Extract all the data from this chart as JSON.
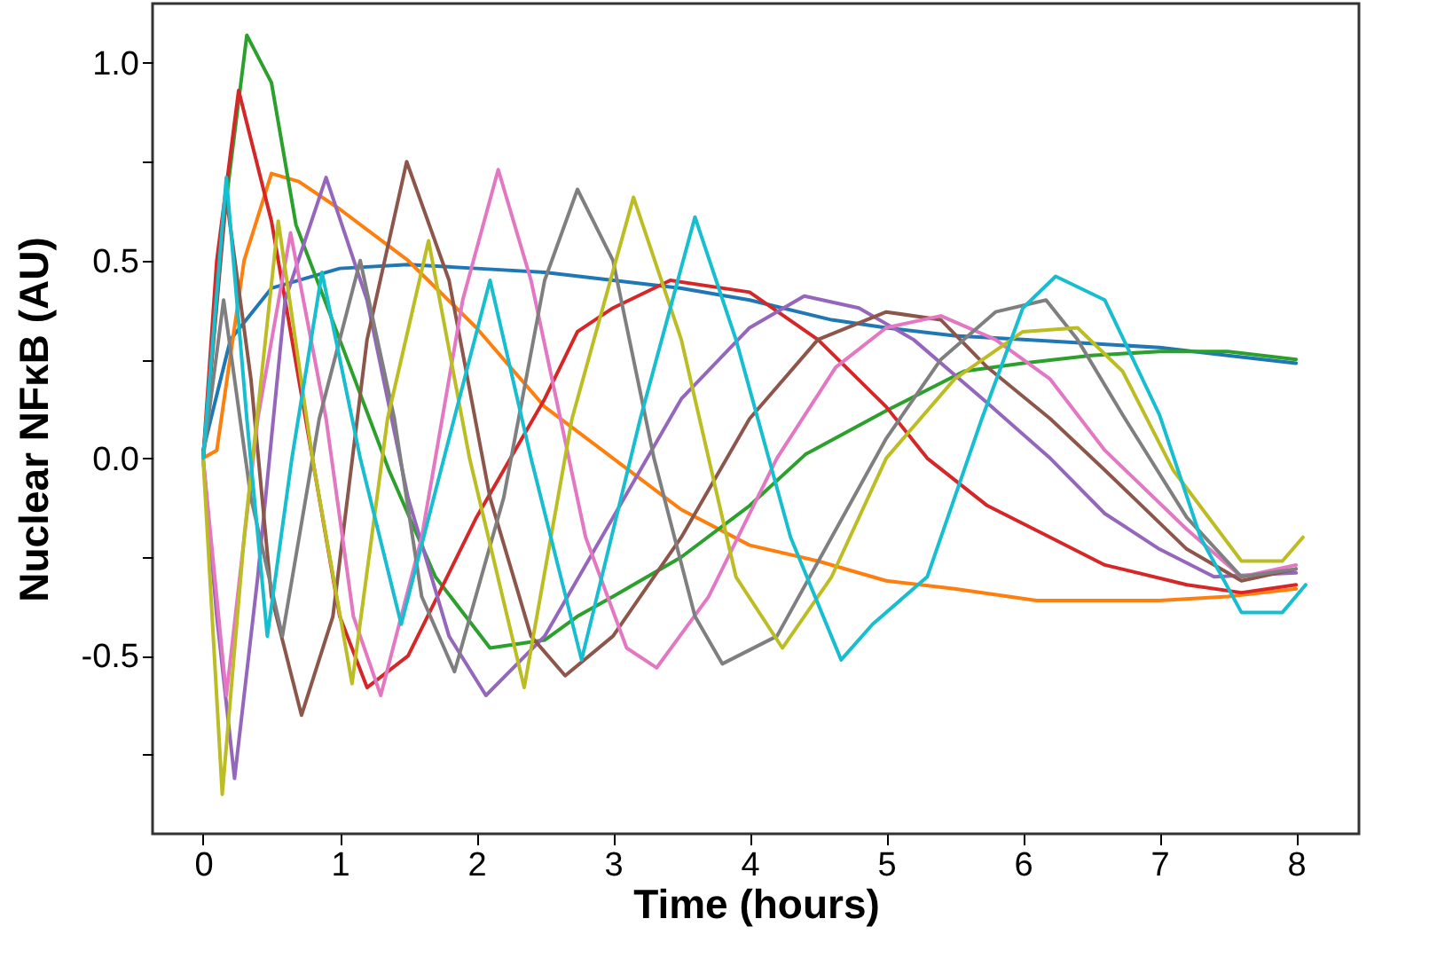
{
  "chart_data": {
    "type": "line",
    "xlabel": "Time (hours)",
    "ylabel": "Nuclear NFκB (AU)",
    "xlim": [
      -0.37,
      8.46
    ],
    "ylim": [
      -0.95,
      1.15
    ],
    "xticks": [
      0,
      1,
      2,
      3,
      4,
      5,
      6,
      7,
      8
    ],
    "yticks": [
      {
        "value": -0.75,
        "label": null
      },
      -0.5,
      {
        "value": -0.25,
        "label": null
      },
      {
        "value": 0,
        "label": "0.0"
      },
      {
        "value": 0.25,
        "label": null
      },
      0.5,
      {
        "value": 0.75,
        "label": null
      },
      {
        "value": 1,
        "label": "1.0"
      }
    ],
    "grid": false,
    "legend": false,
    "line_style": "solid",
    "marker": "none",
    "series": [
      {
        "color": "#1f77b4",
        "x": [
          0,
          0.2,
          0.5,
          1,
          1.5,
          2,
          2.5,
          3,
          3.5,
          4,
          4.6,
          5,
          5.5,
          6,
          6.5,
          7,
          7.5,
          8
        ],
        "values": [
          0.02,
          0.3,
          0.43,
          0.48,
          0.49,
          0.48,
          0.47,
          0.45,
          0.43,
          0.4,
          0.35,
          0.33,
          0.31,
          0.3,
          0.29,
          0.28,
          0.26,
          0.24
        ]
      },
      {
        "color": "#ff7f0e",
        "x": [
          0,
          0.1,
          0.3,
          0.5,
          0.7,
          1,
          1.5,
          2,
          2.5,
          3,
          3.5,
          4,
          4.5,
          5,
          5.5,
          6.1,
          7,
          7.5,
          8
        ],
        "values": [
          0,
          0.02,
          0.5,
          0.72,
          0.7,
          0.63,
          0.5,
          0.33,
          0.13,
          0,
          -0.13,
          -0.22,
          -0.26,
          -0.31,
          -0.33,
          -0.36,
          -0.36,
          -0.35,
          -0.33
        ]
      },
      {
        "color": "#2ca02c",
        "x": [
          0,
          0.15,
          0.32,
          0.5,
          0.68,
          1,
          1.36,
          1.7,
          2.1,
          2.5,
          2.74,
          3,
          3.5,
          4,
          4.41,
          5,
          5.57,
          6,
          6.5,
          7,
          7.5,
          8
        ],
        "values": [
          0,
          0.6,
          1.07,
          0.95,
          0.59,
          0.3,
          -0.03,
          -0.3,
          -0.48,
          -0.46,
          -0.4,
          -0.35,
          -0.25,
          -0.12,
          0.01,
          0.12,
          0.22,
          0.24,
          0.26,
          0.27,
          0.27,
          0.25
        ]
      },
      {
        "color": "#d62728",
        "x": [
          0,
          0.1,
          0.26,
          0.5,
          0.8,
          1,
          1.2,
          1.5,
          2,
          2.5,
          2.74,
          3,
          3.42,
          4,
          4.5,
          5,
          5.3,
          5.74,
          6.2,
          6.6,
          7.2,
          7.6,
          8
        ],
        "values": [
          0,
          0.5,
          0.93,
          0.6,
          0,
          -0.4,
          -0.58,
          -0.5,
          -0.15,
          0.15,
          0.32,
          0.38,
          0.45,
          0.42,
          0.3,
          0.13,
          0,
          -0.12,
          -0.2,
          -0.27,
          -0.32,
          -0.34,
          -0.32
        ]
      },
      {
        "color": "#9467bd",
        "x": [
          0,
          0.1,
          0.23,
          0.4,
          0.6,
          0.9,
          1.2,
          1.5,
          1.8,
          2.07,
          2.5,
          3,
          3.5,
          4,
          4.4,
          4.8,
          5.2,
          5.74,
          6.2,
          6.6,
          7,
          7.4,
          8
        ],
        "values": [
          0,
          -0.4,
          -0.81,
          -0.3,
          0.4,
          0.71,
          0.4,
          -0.1,
          -0.45,
          -0.6,
          -0.45,
          -0.15,
          0.15,
          0.33,
          0.41,
          0.38,
          0.3,
          0.14,
          0,
          -0.14,
          -0.23,
          -0.3,
          -0.29
        ]
      },
      {
        "color": "#8c564b",
        "x": [
          0,
          0.17,
          0.35,
          0.5,
          0.72,
          0.95,
          1.2,
          1.49,
          1.8,
          2.1,
          2.4,
          2.65,
          3,
          3.5,
          4,
          4.5,
          5,
          5.4,
          5.74,
          6.2,
          6.6,
          7.2,
          7.6,
          8
        ],
        "values": [
          0,
          0.66,
          0.2,
          -0.35,
          -0.65,
          -0.4,
          0.3,
          0.75,
          0.45,
          -0.1,
          -0.45,
          -0.55,
          -0.45,
          -0.2,
          0.1,
          0.3,
          0.37,
          0.35,
          0.23,
          0.1,
          -0.03,
          -0.23,
          -0.31,
          -0.28
        ]
      },
      {
        "color": "#e377c2",
        "x": [
          0,
          0.17,
          0.4,
          0.64,
          0.9,
          1.1,
          1.3,
          1.6,
          1.9,
          2.16,
          2.4,
          2.8,
          3.1,
          3.32,
          3.7,
          4.2,
          4.63,
          5,
          5.4,
          5.8,
          6.2,
          6.6,
          7.2,
          7.6,
          8
        ],
        "values": [
          0,
          -0.6,
          0.1,
          0.57,
          0.1,
          -0.4,
          -0.6,
          -0.2,
          0.4,
          0.73,
          0.45,
          -0.2,
          -0.48,
          -0.53,
          -0.35,
          0,
          0.23,
          0.33,
          0.36,
          0.3,
          0.2,
          0.02,
          -0.18,
          -0.3,
          -0.27
        ]
      },
      {
        "color": "#7f7f7f",
        "x": [
          0,
          0.15,
          0.35,
          0.58,
          0.85,
          1.15,
          1.4,
          1.6,
          1.84,
          2.2,
          2.5,
          2.74,
          3,
          3.3,
          3.6,
          3.8,
          4.2,
          4.6,
          5,
          5.4,
          5.8,
          6.17,
          6.4,
          6.73,
          7.2,
          7.6,
          8
        ],
        "values": [
          0,
          0.4,
          -0.1,
          -0.45,
          0.1,
          0.5,
          0.1,
          -0.35,
          -0.54,
          -0.1,
          0.45,
          0.68,
          0.5,
          0,
          -0.4,
          -0.52,
          -0.45,
          -0.2,
          0.05,
          0.25,
          0.37,
          0.4,
          0.3,
          0.11,
          -0.15,
          -0.3,
          -0.28
        ]
      },
      {
        "color": "#bcbd22",
        "x": [
          0,
          0.14,
          0.3,
          0.55,
          0.8,
          1.09,
          1.35,
          1.65,
          1.95,
          2.35,
          2.7,
          3.15,
          3.5,
          3.9,
          4.24,
          4.6,
          5,
          5.5,
          6,
          6.4,
          6.73,
          7.1,
          7.6,
          7.9,
          8.05
        ],
        "values": [
          0,
          -0.85,
          -0.2,
          0.6,
          0,
          -0.57,
          0.1,
          0.55,
          0,
          -0.58,
          0.1,
          0.66,
          0.3,
          -0.3,
          -0.48,
          -0.3,
          0,
          0.2,
          0.32,
          0.33,
          0.22,
          -0.03,
          -0.26,
          -0.26,
          -0.2
        ]
      },
      {
        "color": "#17becf",
        "x": [
          0,
          0.17,
          0.32,
          0.47,
          0.65,
          0.87,
          1.15,
          1.45,
          1.8,
          2.1,
          2.4,
          2.77,
          3.2,
          3.6,
          3.9,
          4.3,
          4.67,
          4.9,
          5.3,
          5.7,
          6,
          6.24,
          6.6,
          7,
          7.3,
          7.6,
          7.9,
          8.07
        ],
        "values": [
          0,
          0.71,
          0.1,
          -0.45,
          0,
          0.47,
          0,
          -0.42,
          0.05,
          0.45,
          0,
          -0.51,
          0.1,
          0.61,
          0.3,
          -0.2,
          -0.51,
          -0.42,
          -0.3,
          0.1,
          0.38,
          0.46,
          0.4,
          0.11,
          -0.2,
          -0.39,
          -0.39,
          -0.32
        ]
      }
    ]
  }
}
